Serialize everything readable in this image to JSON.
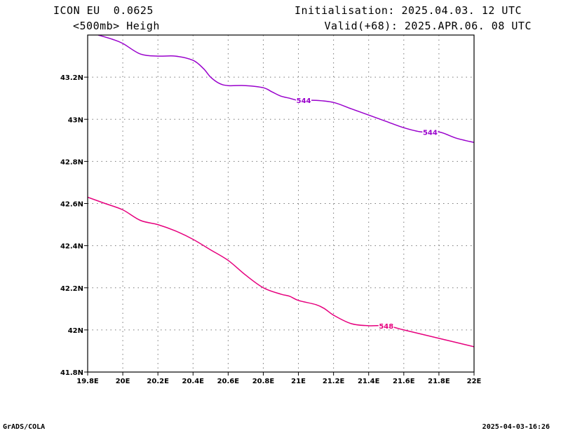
{
  "header": {
    "model": "ICON EU  0.0625",
    "variable": "<500mb> Heigh",
    "init": "Initialisation: 2025.04.03. 12 UTC",
    "valid": "Valid(+68): 2025.APR.06. 08 UTC"
  },
  "footer": {
    "software": "GrADS/COLA",
    "timestamp": "2025-04-03-16:26"
  },
  "colors": {
    "contour_544": "#9900cc",
    "contour_548": "#e6007e",
    "grid": "#777777",
    "frame": "#000000"
  },
  "chart_data": {
    "type": "line",
    "title": "",
    "xlabel": "",
    "ylabel": "",
    "xlim": [
      19.8,
      22.0
    ],
    "ylim": [
      41.8,
      43.4
    ],
    "grid": true,
    "xticks": [
      19.8,
      20.0,
      20.2,
      20.4,
      20.6,
      20.8,
      21.0,
      21.2,
      21.4,
      21.6,
      21.8,
      22.0
    ],
    "xtick_labels": [
      "19.8E",
      "20E",
      "20.2E",
      "20.4E",
      "20.6E",
      "20.8E",
      "21E",
      "21.2E",
      "21.4E",
      "21.6E",
      "21.8E",
      "22E"
    ],
    "yticks": [
      41.8,
      42.0,
      42.2,
      42.4,
      42.6,
      42.8,
      43.0,
      43.2
    ],
    "ytick_labels": [
      "41.8N",
      "42N",
      "42.2N",
      "42.4N",
      "42.6N",
      "42.8N",
      "43N",
      "43.2N"
    ],
    "series": [
      {
        "name": "544",
        "color": "#9900cc",
        "label_at": [
          [
            21.03,
            43.09
          ],
          [
            21.75,
            42.94
          ]
        ],
        "x": [
          19.86,
          19.94,
          20.0,
          20.1,
          20.2,
          20.3,
          20.4,
          20.46,
          20.5,
          20.55,
          20.6,
          20.7,
          20.8,
          20.85,
          20.9,
          20.95,
          21.0,
          21.1,
          21.2,
          21.3,
          21.4,
          21.5,
          21.6,
          21.7,
          21.8,
          21.9,
          22.0
        ],
        "y": [
          43.4,
          43.38,
          43.36,
          43.31,
          43.3,
          43.3,
          43.28,
          43.24,
          43.2,
          43.17,
          43.16,
          43.16,
          43.15,
          43.13,
          43.11,
          43.1,
          43.09,
          43.09,
          43.08,
          43.05,
          43.02,
          42.99,
          42.96,
          42.94,
          42.94,
          42.91,
          42.89
        ]
      },
      {
        "name": "548",
        "color": "#e6007e",
        "label_at": [
          [
            21.5,
            42.02
          ]
        ],
        "x": [
          19.8,
          19.9,
          20.0,
          20.1,
          20.2,
          20.3,
          20.4,
          20.5,
          20.6,
          20.7,
          20.8,
          20.9,
          20.95,
          21.0,
          21.1,
          21.15,
          21.2,
          21.3,
          21.4,
          21.5,
          21.6,
          21.7,
          21.8,
          21.9,
          22.0
        ],
        "y": [
          42.63,
          42.6,
          42.57,
          42.52,
          42.5,
          42.47,
          42.43,
          42.38,
          42.33,
          42.26,
          42.2,
          42.17,
          42.16,
          42.14,
          42.12,
          42.1,
          42.07,
          42.03,
          42.02,
          42.02,
          42.0,
          41.98,
          41.96,
          41.94,
          41.92
        ]
      }
    ]
  }
}
